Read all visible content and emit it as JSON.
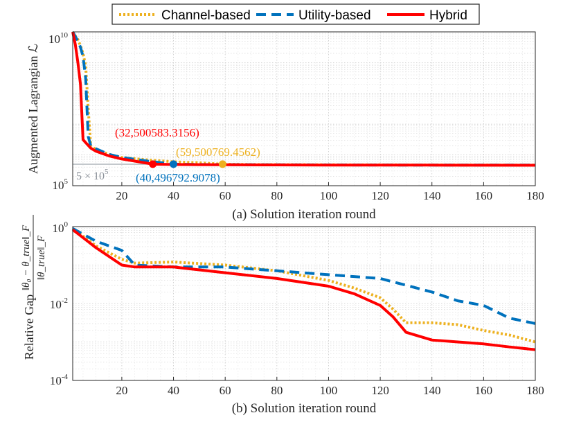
{
  "legend": {
    "entries": [
      {
        "label": "Channel-based",
        "color": "#EDB120",
        "dash": "dotted"
      },
      {
        "label": "Utility-based",
        "color": "#0072BD",
        "dash": "dashed"
      },
      {
        "label": "Hybrid",
        "color": "#FF0000",
        "dash": "solid"
      }
    ]
  },
  "chart_data": [
    {
      "type": "line",
      "caption": "(a) Solution iteration round",
      "xlabel": "(a) Solution iteration round",
      "ylabel": "Augmented Lagrangian ℒ",
      "xlim": [
        1,
        180
      ],
      "ylim_log10": [
        5,
        10
      ],
      "yscale": "log",
      "grid": true,
      "x_ticks": [
        20,
        40,
        60,
        80,
        100,
        120,
        140,
        160,
        180
      ],
      "y_tick_labels": [
        {
          "base": "10",
          "exp": "10",
          "log10": 10
        },
        {
          "base": "10",
          "exp": "5",
          "log10": 5
        }
      ],
      "reference_line": {
        "value_log10": 5.699,
        "label_base": "5 × 10",
        "label_exp": "5",
        "color": "#9FA6AE"
      },
      "series": [
        {
          "name": "Channel-based",
          "color": "#EDB120",
          "x": [
            1,
            3,
            4,
            5,
            6,
            7,
            8,
            10,
            15,
            20,
            30,
            40,
            50,
            59,
            70,
            100,
            140,
            180
          ],
          "log10_values": [
            10.0,
            9.75,
            9.55,
            9.3,
            8.9,
            7.5,
            6.28,
            6.18,
            6.02,
            5.92,
            5.84,
            5.78,
            5.745,
            5.7,
            5.69,
            5.68,
            5.675,
            5.67
          ]
        },
        {
          "name": "Utility-based",
          "color": "#0072BD",
          "x": [
            1,
            3,
            4,
            5,
            6,
            7,
            8,
            10,
            15,
            20,
            30,
            40,
            50,
            60,
            80,
            100,
            140,
            180
          ],
          "log10_values": [
            10.0,
            9.7,
            9.5,
            9.2,
            8.5,
            6.6,
            6.3,
            6.2,
            6.02,
            5.92,
            5.8,
            5.7,
            5.69,
            5.685,
            5.68,
            5.675,
            5.67,
            5.67
          ]
        },
        {
          "name": "Hybrid",
          "color": "#FF0000",
          "x": [
            1,
            2,
            3,
            4,
            5,
            6,
            8,
            10,
            15,
            20,
            25,
            32,
            40,
            50,
            60,
            80,
            100,
            140,
            180
          ],
          "log10_values": [
            10.0,
            9.6,
            9.0,
            8.3,
            6.5,
            6.4,
            6.22,
            6.12,
            5.97,
            5.87,
            5.8,
            5.7,
            5.69,
            5.685,
            5.68,
            5.675,
            5.672,
            5.668,
            5.665
          ]
        }
      ],
      "annotations": [
        {
          "text": "(32,500583.3156)",
          "x": 32,
          "log10_y": 5.7,
          "color": "#FF0000"
        },
        {
          "text": "(40,496792.9078)",
          "x": 40,
          "log10_y": 5.7,
          "color": "#0072BD"
        },
        {
          "text": "(59,500769.4562)",
          "x": 59,
          "log10_y": 5.7,
          "color": "#EDB120"
        }
      ]
    },
    {
      "type": "line",
      "caption": "(b) Solution iteration round",
      "xlabel": "(b) Solution iteration round",
      "ylabel": "Relative Gap",
      "ylabel_fraction": {
        "numerator": "‖θ₀ − θ_true‖_F",
        "denominator": "‖θ_true‖_F"
      },
      "xlim": [
        1,
        180
      ],
      "ylim_log10": [
        -4,
        0
      ],
      "yscale": "log",
      "grid": true,
      "x_ticks": [
        20,
        40,
        60,
        80,
        100,
        120,
        140,
        160,
        180
      ],
      "y_tick_labels": [
        {
          "base": "10",
          "exp": "0",
          "log10": 0
        },
        {
          "base": "10",
          "exp": "-2",
          "log10": -2
        },
        {
          "base": "10",
          "exp": "-4",
          "log10": -4
        }
      ],
      "series": [
        {
          "name": "Channel-based",
          "color": "#EDB120",
          "x": [
            1,
            10,
            20,
            25,
            40,
            60,
            80,
            100,
            110,
            120,
            125,
            130,
            140,
            150,
            160,
            170,
            180
          ],
          "log10_values": [
            -0.05,
            -0.5,
            -0.85,
            -0.95,
            -0.92,
            -1.0,
            -1.15,
            -1.4,
            -1.6,
            -1.85,
            -2.15,
            -2.5,
            -2.5,
            -2.55,
            -2.7,
            -2.82,
            -3.0
          ]
        },
        {
          "name": "Utility-based",
          "color": "#0072BD",
          "x": [
            1,
            10,
            20,
            25,
            40,
            60,
            70,
            80,
            100,
            120,
            140,
            150,
            160,
            170,
            180
          ],
          "log10_values": [
            -0.05,
            -0.38,
            -0.62,
            -1.0,
            -1.05,
            -1.05,
            -1.1,
            -1.15,
            -1.25,
            -1.35,
            -1.7,
            -1.93,
            -2.05,
            -2.38,
            -2.52
          ]
        },
        {
          "name": "Hybrid",
          "color": "#FF0000",
          "x": [
            1,
            10,
            20,
            25,
            40,
            60,
            80,
            100,
            110,
            120,
            125,
            130,
            140,
            150,
            160,
            170,
            180
          ],
          "log10_values": [
            -0.08,
            -0.55,
            -1.0,
            -1.05,
            -1.05,
            -1.2,
            -1.35,
            -1.55,
            -1.75,
            -2.05,
            -2.35,
            -2.75,
            -2.95,
            -3.0,
            -3.05,
            -3.13,
            -3.2
          ]
        }
      ]
    }
  ]
}
